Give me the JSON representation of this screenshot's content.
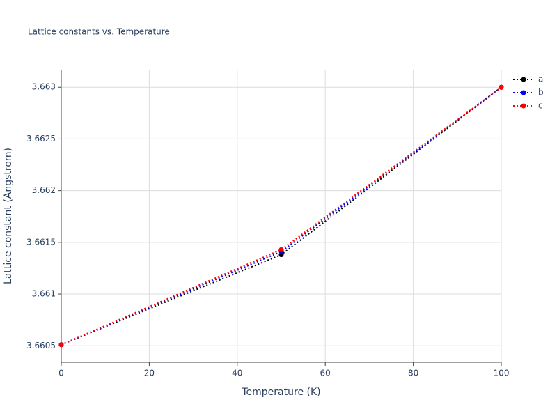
{
  "chart_data": {
    "type": "line",
    "title": "Lattice constants vs. Temperature",
    "x_label": "Temperature (K)",
    "y_label": "Lattice constant (Angstrom)",
    "x": [
      0,
      50,
      100
    ],
    "series": [
      {
        "name": "a",
        "color": "#000000",
        "values": [
          3.66051,
          3.66138,
          3.663
        ]
      },
      {
        "name": "b",
        "color": "#0000ff",
        "values": [
          3.66051,
          3.66141,
          3.663
        ]
      },
      {
        "name": "c",
        "color": "#ff0000",
        "values": [
          3.66051,
          3.66143,
          3.663
        ]
      }
    ],
    "xlim": [
      0,
      100
    ],
    "xticks": [
      0,
      20,
      40,
      60,
      80,
      100
    ],
    "ylim": [
      3.66034,
      3.66317
    ],
    "yticks": [
      3.6605,
      3.661,
      3.6615,
      3.662,
      3.6625,
      3.663
    ],
    "grid": true,
    "legend": "right"
  }
}
